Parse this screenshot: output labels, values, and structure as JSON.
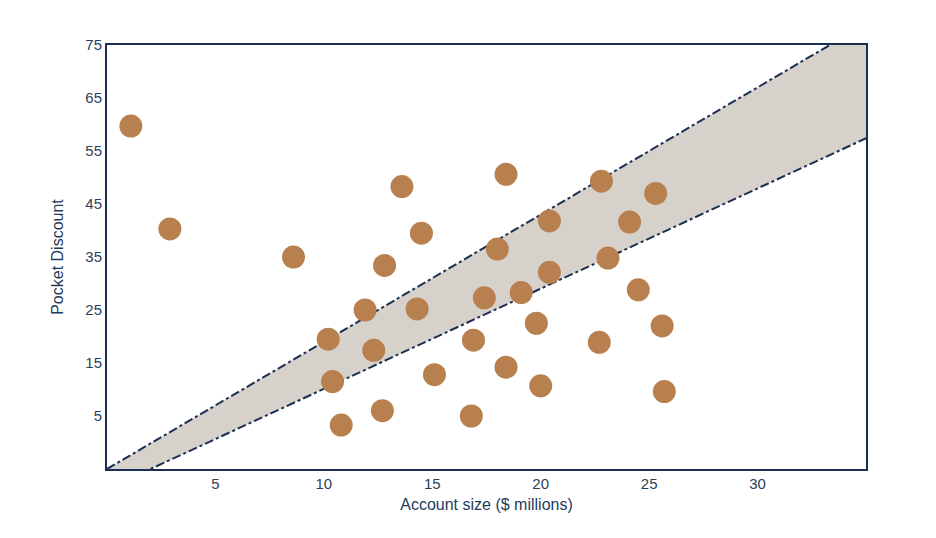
{
  "chart_data": {
    "type": "scatter",
    "x_label": "Account size ($ millions)",
    "y_label": "Pocket Discount",
    "xlim": [
      0,
      35
    ],
    "ylim": [
      -5,
      75
    ],
    "xticks": [
      5,
      10,
      15,
      20,
      25,
      30
    ],
    "yticks": [
      5,
      15,
      25,
      35,
      45,
      55,
      65,
      75
    ],
    "grid": false,
    "series": [
      {
        "type": "band",
        "color": "#d7d1cc",
        "line_style": "dashdot",
        "x": [
          0,
          35
        ],
        "lower": [
          -8.8,
          57.4
        ],
        "upper": [
          -5,
          79
        ]
      },
      {
        "type": "scatter",
        "color": "#b8804f",
        "marker": "circle",
        "x": [
          1.1,
          2.9,
          8.6,
          13.6,
          18.4,
          22.8,
          25.3,
          14.5,
          20.4,
          24.1,
          18.0,
          12.8,
          23.1,
          20.4,
          11.9,
          14.3,
          17.4,
          19.1,
          24.5,
          10.2,
          12.3,
          16.9,
          19.8,
          22.7,
          25.6,
          10.4,
          15.1,
          18.4,
          20.0,
          25.7,
          10.8,
          12.7,
          16.8
        ],
        "values": [
          59.7,
          40.3,
          35.0,
          48.3,
          50.6,
          49.3,
          47.0,
          39.5,
          41.8,
          41.6,
          36.5,
          33.4,
          34.8,
          32.1,
          25.0,
          25.2,
          27.3,
          28.3,
          28.8,
          19.5,
          17.4,
          19.3,
          22.5,
          18.9,
          22.0,
          11.5,
          12.8,
          14.2,
          10.7,
          9.6,
          3.3,
          6.0,
          5.0
        ]
      }
    ]
  }
}
